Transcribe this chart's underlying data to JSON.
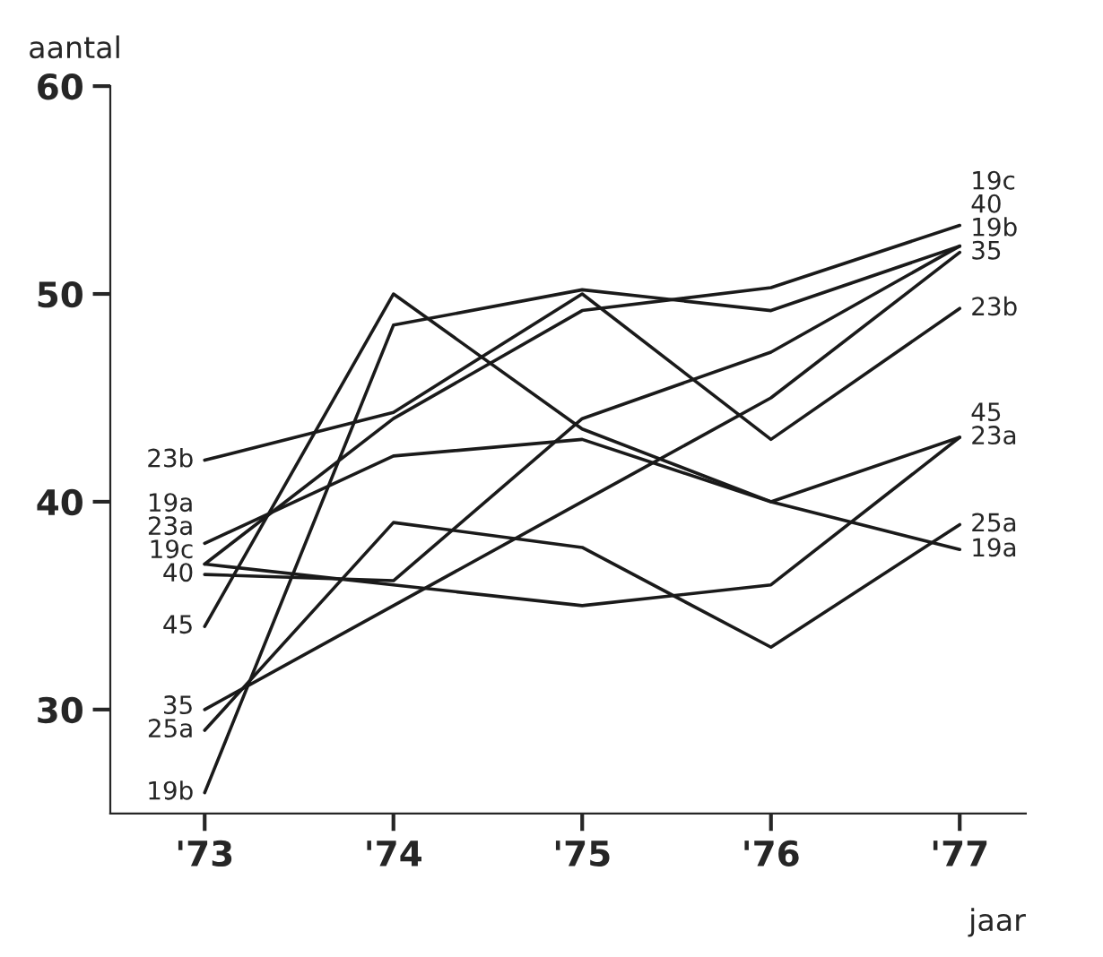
{
  "chart_data": {
    "type": "line",
    "xlabel": "jaar",
    "ylabel": "aantal",
    "categories": [
      "'73",
      "'74",
      "'75",
      "'76",
      "'77"
    ],
    "ylim": [
      25,
      60
    ],
    "yticks": [
      30,
      40,
      50,
      60
    ],
    "grid": false,
    "legend": false,
    "marker": "none",
    "line_style": "solid",
    "series": [
      {
        "name": "19a",
        "color": "#1a1a1a",
        "values": [
          38,
          42.2,
          43,
          40,
          37.7
        ]
      },
      {
        "name": "19b",
        "color": "#1a1a1a",
        "values": [
          26,
          48.5,
          50.2,
          49.2,
          52.3
        ]
      },
      {
        "name": "19c",
        "color": "#1a1a1a",
        "values": [
          37,
          44,
          49.2,
          50.3,
          53.3
        ]
      },
      {
        "name": "23a",
        "color": "#1a1a1a",
        "values": [
          37,
          36,
          35,
          36,
          43.1
        ]
      },
      {
        "name": "23b",
        "color": "#1a1a1a",
        "values": [
          42,
          44.3,
          50,
          43,
          49.3
        ]
      },
      {
        "name": "25a",
        "color": "#1a1a1a",
        "values": [
          29,
          39,
          37.8,
          33,
          38.9
        ]
      },
      {
        "name": "35",
        "color": "#1a1a1a",
        "values": [
          30,
          35,
          40,
          45,
          52
        ]
      },
      {
        "name": "40",
        "color": "#1a1a1a",
        "values": [
          36.5,
          36.2,
          44,
          47.2,
          52.3
        ]
      },
      {
        "name": "45",
        "color": "#1a1a1a",
        "values": [
          34,
          50,
          43.5,
          40,
          43.1
        ]
      }
    ]
  }
}
